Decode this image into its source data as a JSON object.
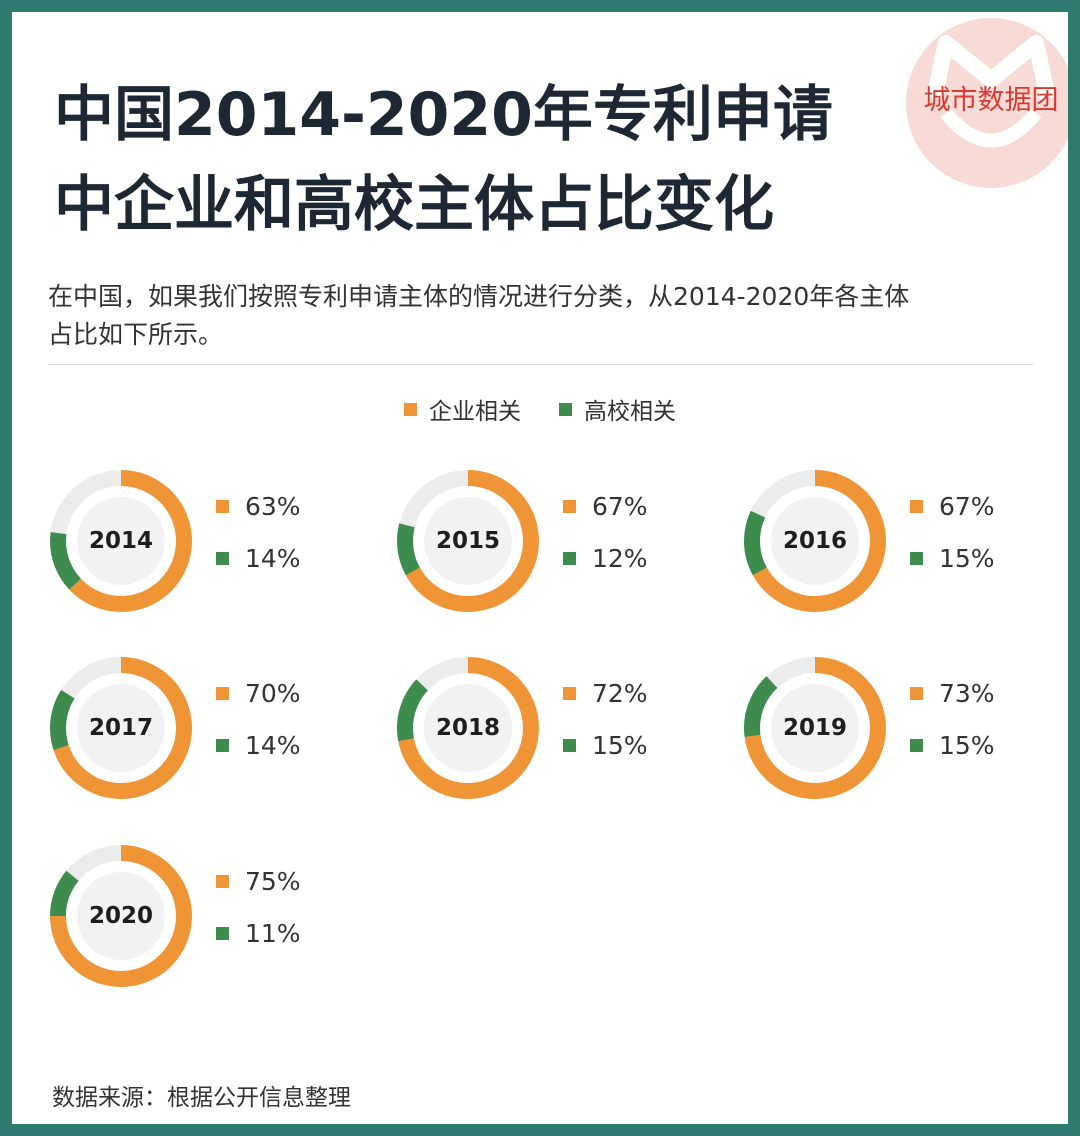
{
  "brand": "城市数据团",
  "title_line1": "中国2014-2020年专利申请",
  "title_line2": "中企业和高校主体占比变化",
  "subtitle_line1": "在中国，如果我们按照专利申请主体的情况进行分类，从2014-2020年各主体",
  "subtitle_line2": "占比如下所示。",
  "source": "数据来源：根据公开信息整理",
  "colors": {
    "enterprise": "#ef9535",
    "university": "#3e8b4e",
    "track": "#ececec",
    "inner": "#f2f2f3"
  },
  "chart_data": {
    "type": "pie",
    "series": [
      {
        "name": "企业相关",
        "values": [
          63,
          67,
          67,
          70,
          72,
          73,
          75
        ]
      },
      {
        "name": "高校相关",
        "values": [
          14,
          12,
          15,
          14,
          15,
          15,
          11
        ]
      }
    ],
    "years": [
      {
        "year": "2014",
        "enterprise": 63,
        "university": 14,
        "enterprise_label": "63%",
        "university_label": "14%"
      },
      {
        "year": "2015",
        "enterprise": 67,
        "university": 12,
        "enterprise_label": "67%",
        "university_label": "12%"
      },
      {
        "year": "2016",
        "enterprise": 67,
        "university": 15,
        "enterprise_label": "67%",
        "university_label": "15%"
      },
      {
        "year": "2017",
        "enterprise": 70,
        "university": 14,
        "enterprise_label": "70%",
        "university_label": "14%"
      },
      {
        "year": "2018",
        "enterprise": 72,
        "university": 15,
        "enterprise_label": "72%",
        "university_label": "15%"
      },
      {
        "year": "2019",
        "enterprise": 73,
        "university": 15,
        "enterprise_label": "73%",
        "university_label": "15%"
      },
      {
        "year": "2020",
        "enterprise": 75,
        "university": 11,
        "enterprise_label": "75%",
        "university_label": "11%"
      }
    ],
    "legend": [
      "企业相关",
      "高校相关"
    ],
    "legend_position": "top-center"
  }
}
